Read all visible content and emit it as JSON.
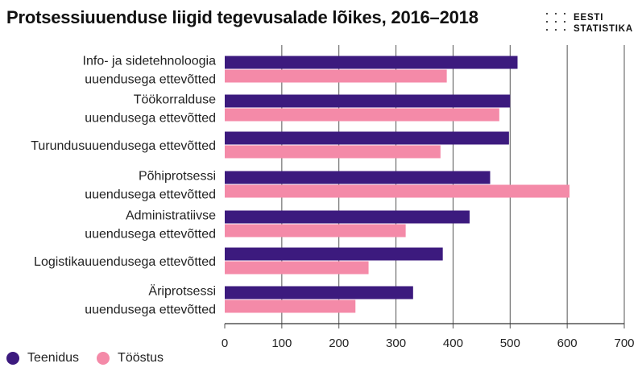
{
  "logo": {
    "line1": "EESTI",
    "line2": "STATISTIKA"
  },
  "colors": {
    "teenidus": "#3c1a7e",
    "toostus": "#f48aa8",
    "grid": "#555555",
    "axis": "#333333"
  },
  "chart_data": {
    "type": "bar",
    "orientation": "horizontal",
    "title": "Protsessiuuenduse liigid tegevusalade lõikes, 2016–2018",
    "categories": [
      [
        "Info- ja sidetehnoloogia",
        "uuendusega ettevõtted"
      ],
      [
        "Töökorralduse",
        "uuendusega ettevõtted"
      ],
      [
        "Turundusuuendusega ettevõtted"
      ],
      [
        "Põhiprotsessi",
        "uuendusega ettevõtted"
      ],
      [
        "Administratiivse",
        "uuendusega ettevõtted"
      ],
      [
        "Logistikauuendusega ettevõtted"
      ],
      [
        "Äriprotsessi",
        "uuendusega ettevõtted"
      ]
    ],
    "series": [
      {
        "name": "Teenidus",
        "color": "#3c1a7e",
        "values": [
          513,
          500,
          498,
          465,
          429,
          382,
          330
        ]
      },
      {
        "name": "Tööstus",
        "color": "#f48aa8",
        "values": [
          389,
          481,
          378,
          604,
          317,
          252,
          229
        ]
      }
    ],
    "xlim": [
      0,
      700
    ],
    "xticks": [
      0,
      100,
      200,
      300,
      400,
      500,
      600,
      700
    ],
    "grid": true,
    "legend": "bottom-left"
  }
}
